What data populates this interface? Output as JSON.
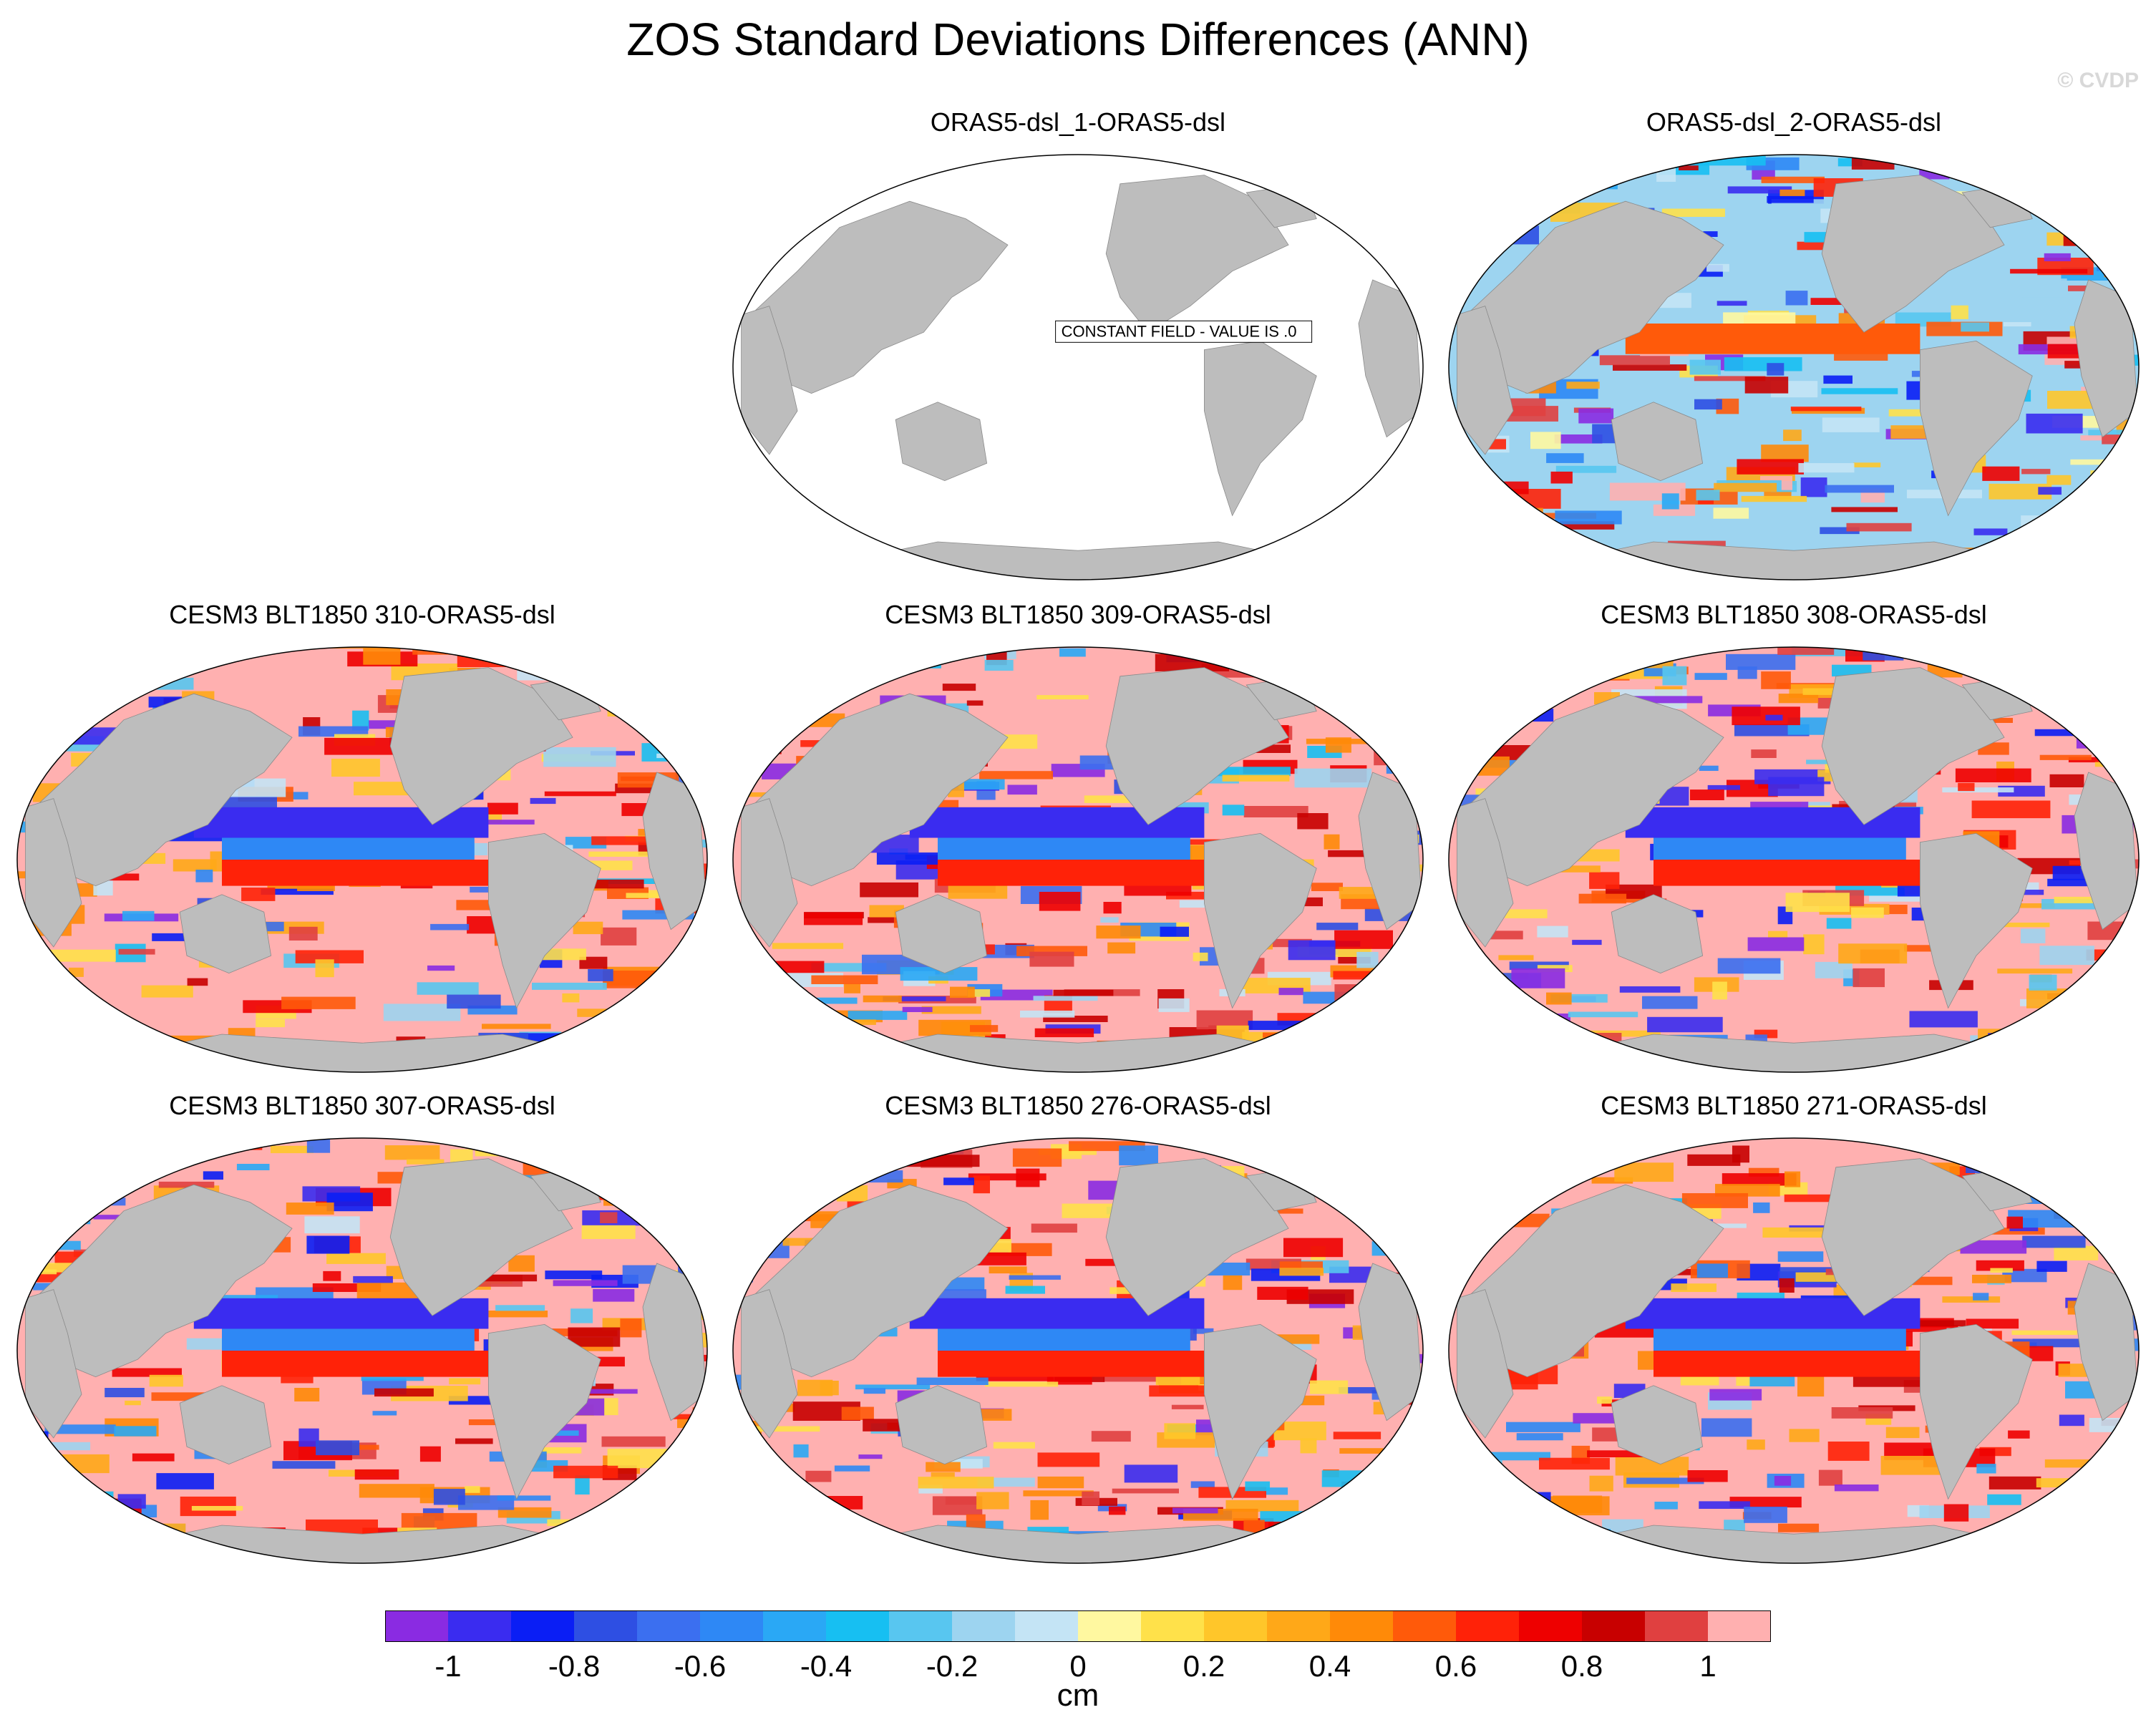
{
  "title": "ZOS Standard Deviations Differences (ANN)",
  "credit": "© CVDP",
  "panels": [
    {
      "title": "ORAS5-dsl_1-ORAS5-dsl",
      "note": "CONSTANT FIELD - VALUE IS .0",
      "field": "constant"
    },
    {
      "title": "ORAS5-dsl_2-ORAS5-dsl",
      "field": "mixed"
    },
    {
      "title": "CESM3 BLT1850 310-ORAS5-dsl",
      "field": "positive"
    },
    {
      "title": "CESM3 BLT1850 309-ORAS5-dsl",
      "field": "positive"
    },
    {
      "title": "CESM3 BLT1850 308-ORAS5-dsl",
      "field": "positive"
    },
    {
      "title": "CESM3 BLT1850 307-ORAS5-dsl",
      "field": "positive"
    },
    {
      "title": "CESM3 BLT1850 276-ORAS5-dsl",
      "field": "positive"
    },
    {
      "title": "CESM3 BLT1850 271-ORAS5-dsl",
      "field": "positive"
    }
  ],
  "colorbar": {
    "colors": [
      "#8a2be2",
      "#3a2cf0",
      "#0a1ef5",
      "#2e4fe3",
      "#3b6ff0",
      "#2e88f5",
      "#2aa8f5",
      "#17bff2",
      "#58c6f0",
      "#9dd4f0",
      "#c4e4f5",
      "#fff8a0",
      "#ffe14a",
      "#ffc62a",
      "#ffa818",
      "#ff8a08",
      "#ff5a0a",
      "#ff2208",
      "#ee0000",
      "#c80000",
      "#e04040",
      "#ffb0b0"
    ],
    "tick_labels": [
      "-1",
      "-0.8",
      "-0.6",
      "-0.4",
      "-0.2",
      "0",
      "0.2",
      "0.4",
      "0.6",
      "0.8",
      "1"
    ],
    "units": "cm"
  }
}
